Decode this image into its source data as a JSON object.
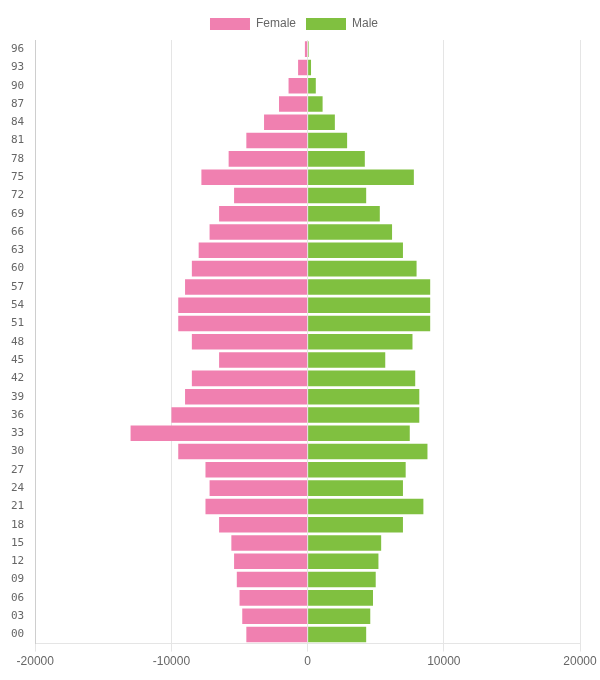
{
  "chart_data": {
    "type": "bar",
    "orientation": "horizontal",
    "categories": [
      "00",
      "03",
      "06",
      "09",
      "12",
      "15",
      "18",
      "21",
      "24",
      "27",
      "30",
      "33",
      "36",
      "39",
      "42",
      "45",
      "48",
      "51",
      "54",
      "57",
      "60",
      "63",
      "66",
      "69",
      "72",
      "75",
      "78",
      "81",
      "84",
      "87",
      "90",
      "93",
      "96"
    ],
    "series": [
      {
        "name": "Female",
        "color": "#f080b0",
        "values": [
          -4500,
          -4800,
          -5000,
          -5200,
          -5400,
          -5600,
          -6500,
          -7500,
          -7200,
          -7500,
          -9500,
          -13000,
          -10000,
          -9000,
          -8500,
          -6500,
          -8500,
          -9500,
          -9500,
          -9000,
          -8500,
          -8000,
          -7200,
          -6500,
          -5400,
          -7800,
          -5800,
          -4500,
          -3200,
          -2100,
          -1400,
          -700,
          -200
        ]
      },
      {
        "name": "Male",
        "color": "#80c040",
        "values": [
          4300,
          4600,
          4800,
          5000,
          5200,
          5400,
          7000,
          8500,
          7000,
          7200,
          8800,
          7500,
          8200,
          8200,
          7900,
          5700,
          7700,
          9000,
          9000,
          9000,
          8000,
          7000,
          6200,
          5300,
          4300,
          7800,
          4200,
          2900,
          2000,
          1100,
          600,
          250,
          80
        ]
      }
    ],
    "xlim": [
      -20000,
      20000
    ],
    "xticks": [
      -20000,
      -10000,
      0,
      10000,
      20000
    ],
    "grid": true,
    "legend": "top"
  }
}
